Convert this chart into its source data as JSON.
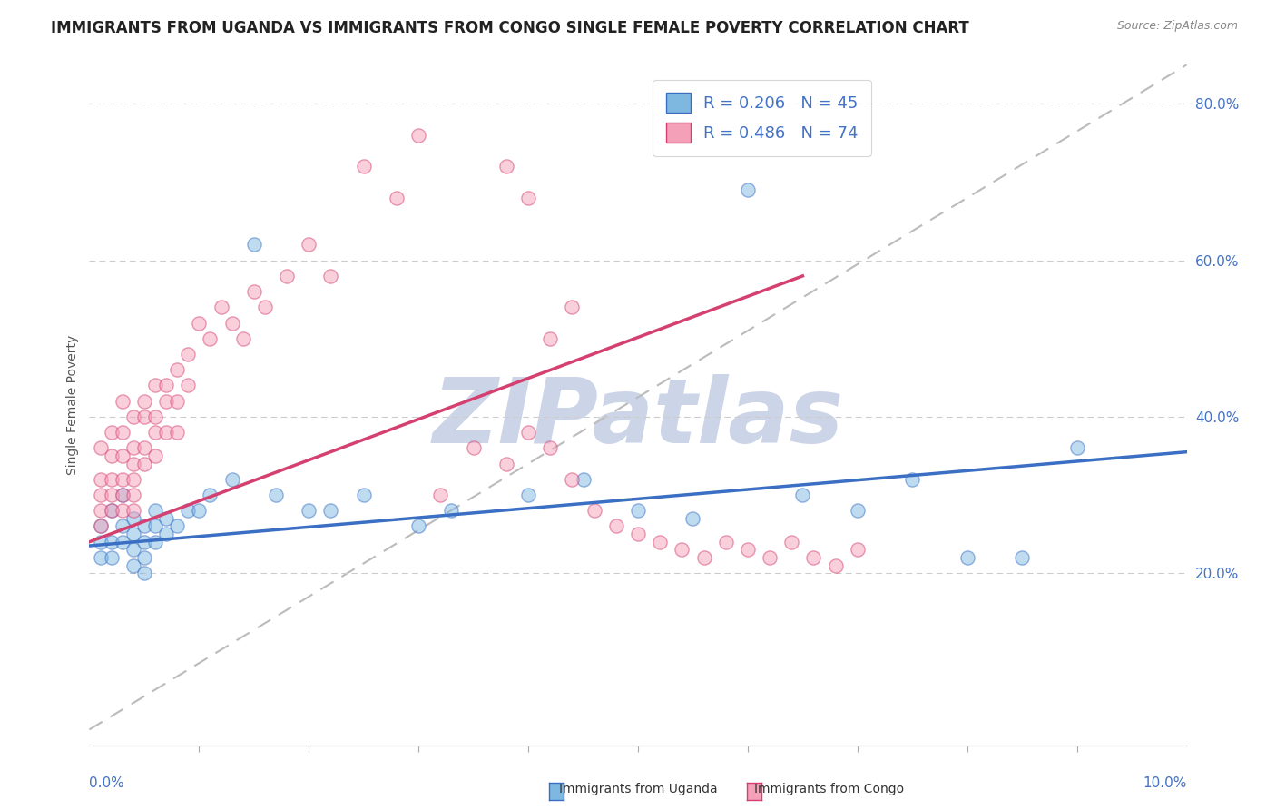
{
  "title": "IMMIGRANTS FROM UGANDA VS IMMIGRANTS FROM CONGO SINGLE FEMALE POVERTY CORRELATION CHART",
  "source": "Source: ZipAtlas.com",
  "ylabel": "Single Female Poverty",
  "watermark": "ZIPatlas",
  "uganda_color": "#7eb8e0",
  "congo_color": "#f4a0b8",
  "uganda_trend_color": "#3a6fc4",
  "congo_trend_color": "#d44070",
  "xlim": [
    0.0,
    0.1
  ],
  "ylim": [
    -0.02,
    0.85
  ],
  "yticks": [
    0.2,
    0.4,
    0.6,
    0.8
  ],
  "ytick_labels": [
    "20.0%",
    "40.0%",
    "60.0%",
    "80.0%"
  ],
  "background_color": "#ffffff",
  "grid_color": "#cccccc",
  "title_fontsize": 12,
  "axis_label_fontsize": 10,
  "tick_fontsize": 11,
  "watermark_color": "#ccd5e8",
  "watermark_fontsize": 72,
  "uganda_points_x": [
    0.001,
    0.001,
    0.001,
    0.002,
    0.002,
    0.002,
    0.003,
    0.003,
    0.003,
    0.004,
    0.004,
    0.004,
    0.004,
    0.005,
    0.005,
    0.005,
    0.005,
    0.006,
    0.006,
    0.006,
    0.007,
    0.007,
    0.008,
    0.009,
    0.01,
    0.011,
    0.013,
    0.015,
    0.017,
    0.02,
    0.022,
    0.025,
    0.03,
    0.033,
    0.04,
    0.045,
    0.05,
    0.055,
    0.06,
    0.065,
    0.07,
    0.075,
    0.08,
    0.085,
    0.09
  ],
  "uganda_points_y": [
    0.24,
    0.22,
    0.26,
    0.28,
    0.24,
    0.22,
    0.3,
    0.26,
    0.24,
    0.27,
    0.25,
    0.23,
    0.21,
    0.26,
    0.24,
    0.22,
    0.2,
    0.28,
    0.26,
    0.24,
    0.27,
    0.25,
    0.26,
    0.28,
    0.28,
    0.3,
    0.32,
    0.62,
    0.3,
    0.28,
    0.28,
    0.3,
    0.26,
    0.28,
    0.3,
    0.32,
    0.28,
    0.27,
    0.69,
    0.3,
    0.28,
    0.32,
    0.22,
    0.22,
    0.36
  ],
  "congo_points_x": [
    0.001,
    0.001,
    0.001,
    0.001,
    0.001,
    0.002,
    0.002,
    0.002,
    0.002,
    0.002,
    0.003,
    0.003,
    0.003,
    0.003,
    0.003,
    0.003,
    0.004,
    0.004,
    0.004,
    0.004,
    0.004,
    0.004,
    0.005,
    0.005,
    0.005,
    0.005,
    0.006,
    0.006,
    0.006,
    0.006,
    0.007,
    0.007,
    0.007,
    0.008,
    0.008,
    0.008,
    0.009,
    0.009,
    0.01,
    0.011,
    0.012,
    0.013,
    0.014,
    0.015,
    0.016,
    0.018,
    0.02,
    0.022,
    0.025,
    0.028,
    0.03,
    0.032,
    0.035,
    0.038,
    0.04,
    0.042,
    0.044,
    0.046,
    0.048,
    0.05,
    0.052,
    0.054,
    0.056,
    0.058,
    0.06,
    0.062,
    0.064,
    0.066,
    0.068,
    0.07,
    0.038,
    0.04,
    0.042,
    0.044
  ],
  "congo_points_y": [
    0.28,
    0.32,
    0.36,
    0.26,
    0.3,
    0.35,
    0.38,
    0.32,
    0.28,
    0.3,
    0.38,
    0.42,
    0.35,
    0.32,
    0.3,
    0.28,
    0.4,
    0.36,
    0.34,
    0.32,
    0.3,
    0.28,
    0.42,
    0.4,
    0.36,
    0.34,
    0.44,
    0.4,
    0.38,
    0.35,
    0.44,
    0.42,
    0.38,
    0.46,
    0.42,
    0.38,
    0.48,
    0.44,
    0.52,
    0.5,
    0.54,
    0.52,
    0.5,
    0.56,
    0.54,
    0.58,
    0.62,
    0.58,
    0.72,
    0.68,
    0.76,
    0.3,
    0.36,
    0.34,
    0.38,
    0.36,
    0.32,
    0.28,
    0.26,
    0.25,
    0.24,
    0.23,
    0.22,
    0.24,
    0.23,
    0.22,
    0.24,
    0.22,
    0.21,
    0.23,
    0.72,
    0.68,
    0.5,
    0.54
  ],
  "uganda_trend_x": [
    0.0,
    0.1
  ],
  "uganda_trend_y": [
    0.235,
    0.355
  ],
  "congo_trend_x": [
    0.0,
    0.065
  ],
  "congo_trend_y": [
    0.24,
    0.58
  ],
  "ref_line_x": [
    0.0,
    0.1
  ],
  "ref_line_y": [
    0.0,
    0.85
  ]
}
